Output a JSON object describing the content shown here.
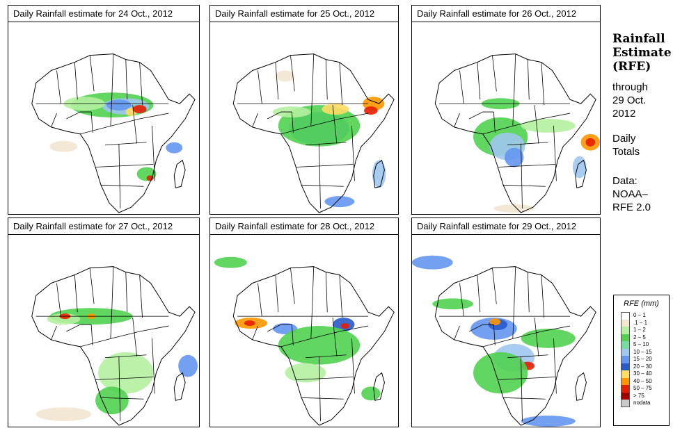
{
  "panels": [
    {
      "title": "Daily Rainfall estimate for  24 Oct., 2012"
    },
    {
      "title": "Daily Rainfall estimate for  25 Oct., 2012"
    },
    {
      "title": "Daily Rainfall estimate for  26 Oct., 2012"
    },
    {
      "title": "Daily Rainfall estimate for  27 Oct., 2012"
    },
    {
      "title": "Daily Rainfall estimate for  28 Oct., 2012"
    },
    {
      "title": "Daily Rainfall estimate for  29 Oct., 2012"
    }
  ],
  "info": {
    "title_line1": "Rainfall",
    "title_line2": "Estimate",
    "title_line3": "(RFE)",
    "through": "through",
    "date_line1": "29 Oct.",
    "date_line2": "2012",
    "totals_line1": "Daily",
    "totals_line2": "Totals",
    "data_line1": "Data:",
    "data_line2": "NOAA–",
    "data_line3": "RFE 2.0"
  },
  "legend": {
    "title": "RFE (mm)",
    "items": [
      {
        "label": "0 – 1",
        "color": "#ffffff"
      },
      {
        "label": ".1 – 1",
        "color": "#f2e6d0"
      },
      {
        "label": "1 – 2",
        "color": "#b4f0a0"
      },
      {
        "label": "2 – 5",
        "color": "#50d250"
      },
      {
        "label": "5 – 10",
        "color": "#78dca0"
      },
      {
        "label": "10 – 15",
        "color": "#a0c8f0"
      },
      {
        "label": "15 – 20",
        "color": "#6496f0"
      },
      {
        "label": "20 – 30",
        "color": "#285ac8"
      },
      {
        "label": "30 – 40",
        "color": "#ffdc64"
      },
      {
        "label": "40 – 50",
        "color": "#ff9600"
      },
      {
        "label": "50 – 75",
        "color": "#e61e00"
      },
      {
        "label": "> 75",
        "color": "#a00000"
      },
      {
        "label": "nodata",
        "color": "#c8c8c8"
      }
    ]
  }
}
